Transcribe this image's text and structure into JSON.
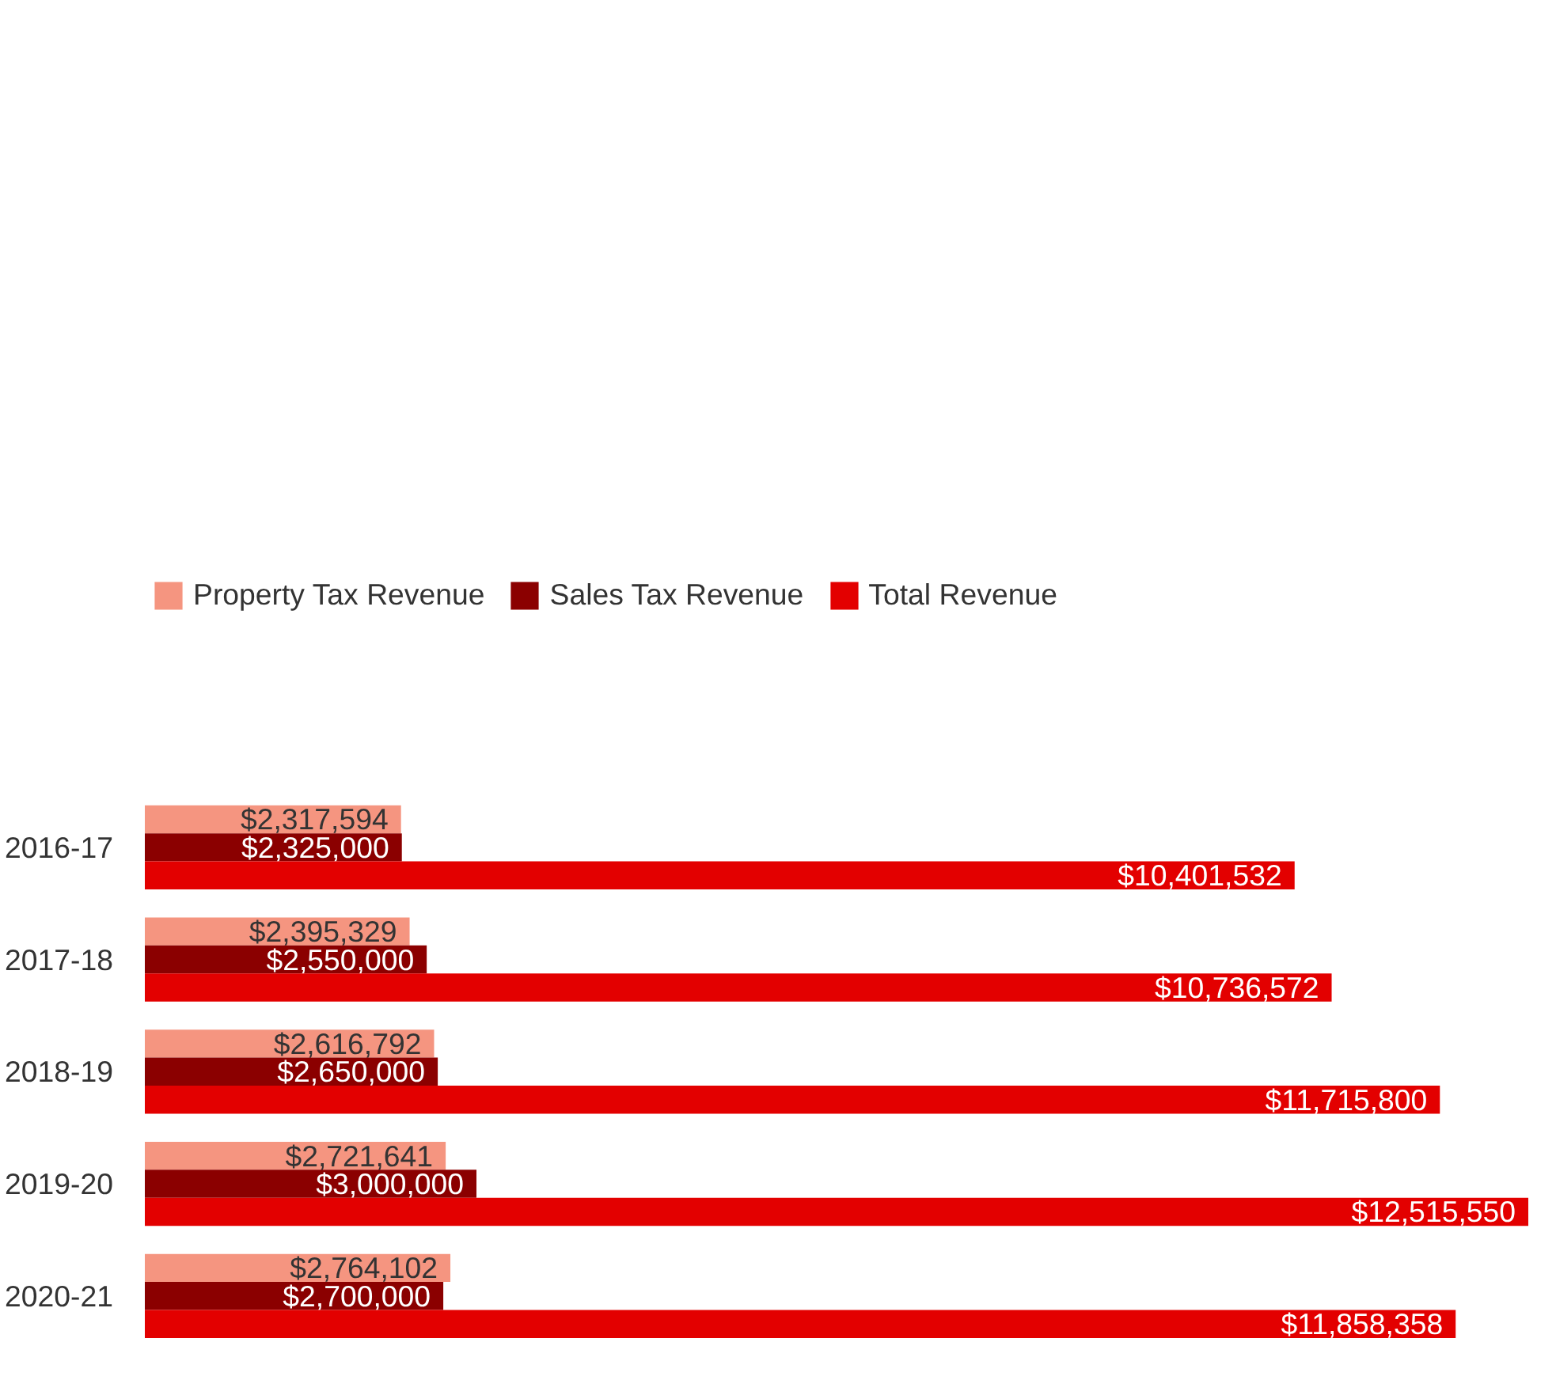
{
  "chart_data": {
    "type": "bar",
    "orientation": "horizontal",
    "categories": [
      "2016-17",
      "2017-18",
      "2018-19",
      "2019-20",
      "2020-21"
    ],
    "series": [
      {
        "name": "Property Tax Revenue",
        "color": "#f59580",
        "values": [
          2317594,
          2395329,
          2616792,
          2721641,
          2764102
        ],
        "value_labels": [
          "$2,317,594",
          "$2,395,329",
          "$2,616,792",
          "$2,721,641",
          "$2,764,102"
        ]
      },
      {
        "name": "Sales Tax Revenue",
        "color": "#8b0000",
        "values": [
          2325000,
          2550000,
          2650000,
          3000000,
          2700000
        ],
        "value_labels": [
          "$2,325,000",
          "$2,550,000",
          "$2,650,000",
          "$3,000,000",
          "$2,700,000"
        ]
      },
      {
        "name": "Total Revenue",
        "color": "#e30000",
        "values": [
          10401532,
          10736572,
          11715800,
          12515550,
          11858358
        ],
        "value_labels": [
          "$10,401,532",
          "$10,736,572",
          "$11,715,800",
          "$12,515,550",
          "$11,858,358"
        ]
      }
    ],
    "xlim": [
      0,
      12515550
    ],
    "grid": false,
    "legend": "top left",
    "tick_labels": "y"
  }
}
